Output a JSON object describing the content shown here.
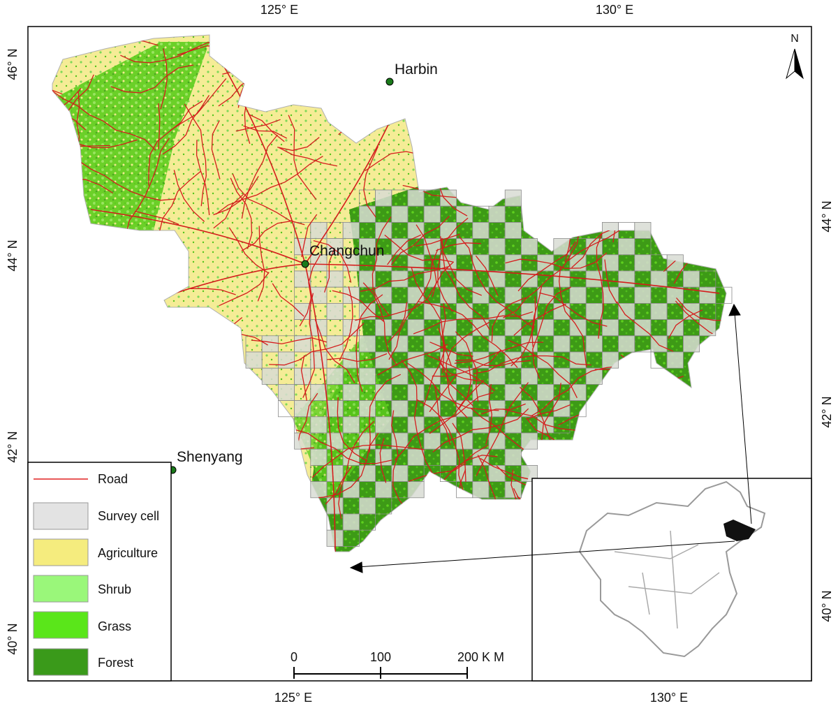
{
  "map": {
    "graticule": {
      "top": [
        "125° E",
        "130° E"
      ],
      "bottom": [
        "125° E",
        "130° E"
      ],
      "left": [
        "46° N",
        "44° N",
        "42° N",
        "40° N"
      ],
      "right": [
        "44° N",
        "42° N",
        "40° N"
      ]
    },
    "cities": [
      "Harbin",
      "Changchun",
      "Shenyang"
    ],
    "north_arrow": "N",
    "scale_bar": [
      "0",
      "100",
      "200 K M"
    ],
    "legend": [
      "Road",
      "Survey cell",
      "Agriculture",
      "Shrub",
      "Grass",
      "Forest"
    ]
  }
}
